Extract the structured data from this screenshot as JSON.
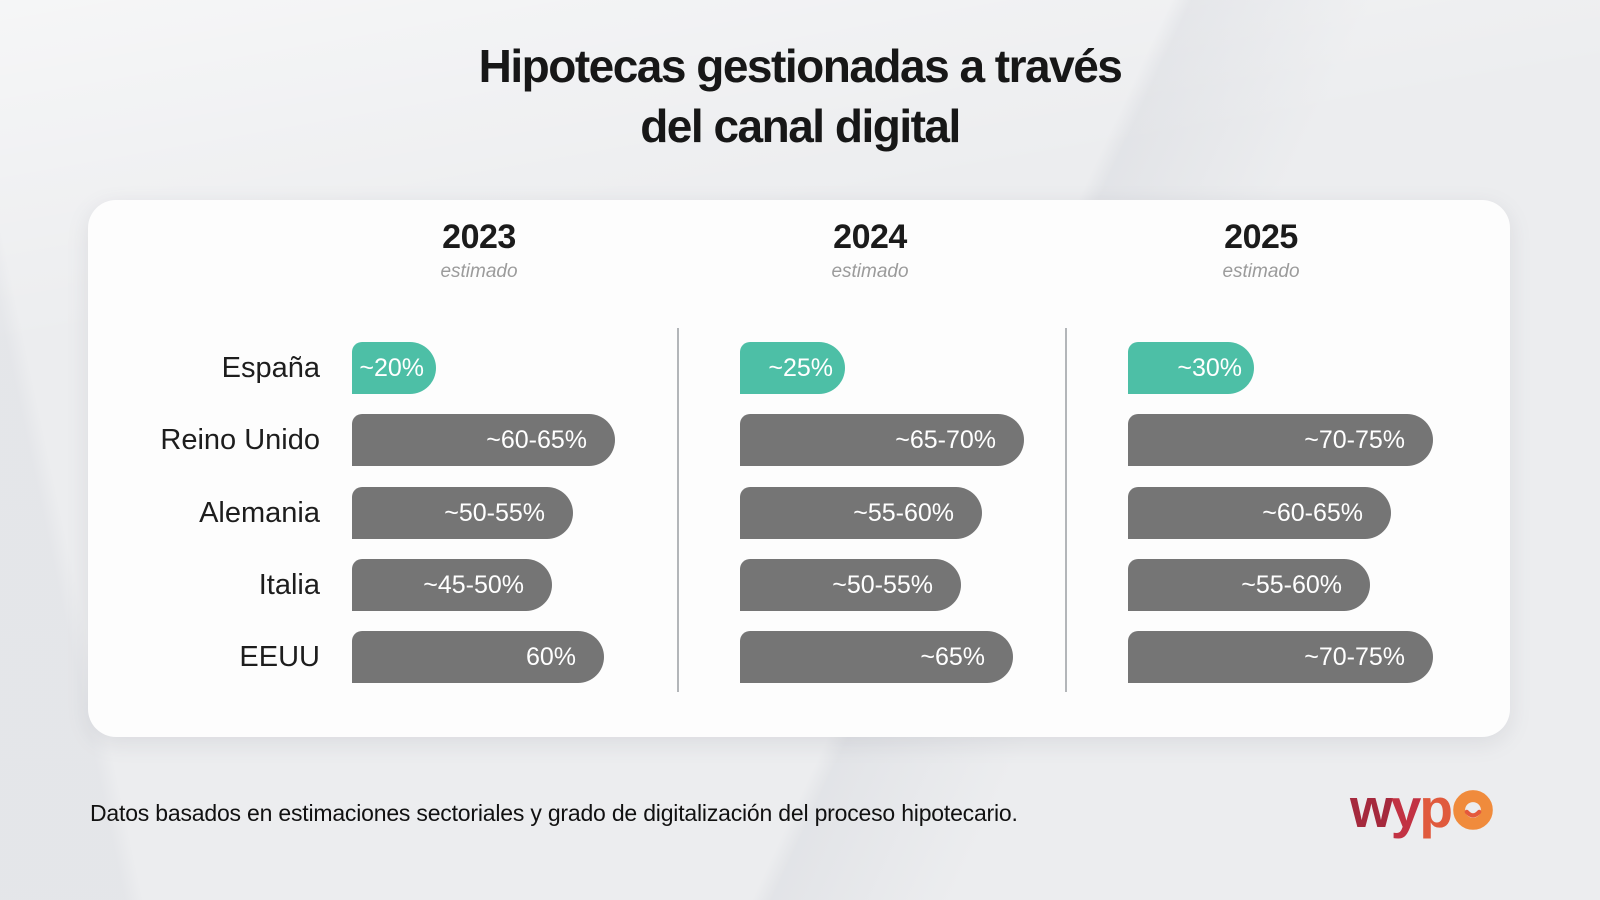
{
  "title": {
    "line1": "Hipotecas gestionadas a través",
    "line2": "del canal digital"
  },
  "footer": {
    "note": "Datos basados en estimaciones sectoriales y grado de digitalización del proceso hipotecario."
  },
  "logo": {
    "brand": "wypo",
    "letters": [
      {
        "char": "w",
        "color": "#a5293d"
      },
      {
        "char": "y",
        "color": "#c23243"
      },
      {
        "char": "p",
        "color": "#e05a3d"
      }
    ],
    "o_color": "#f08b3c",
    "smile_color": "#e4593c"
  },
  "colors": {
    "background": "#ecedef",
    "card": "#fdfdfd",
    "bar_gray": "#757575",
    "bar_teal": "#4dbfa6",
    "divider": "#a6a9ad",
    "estimado": "#9b9b9b",
    "title_text": "#171717",
    "label_text": "#1d1d1d",
    "value_text": "#ffffff",
    "footer_text": "#111111"
  },
  "chart_data": {
    "type": "bar",
    "orientation": "horizontal",
    "title": "Hipotecas gestionadas a través del canal digital",
    "categories": [
      "España",
      "Reino Unido",
      "Alemania",
      "Italia",
      "EEUU"
    ],
    "columns": [
      {
        "year": "2023",
        "subtitle": "estimado",
        "labels": [
          "~20%",
          "~60-65%",
          "~50-55%",
          "~45-50%",
          "60%"
        ],
        "values_mid": [
          20,
          62.5,
          52.5,
          47.5,
          60
        ]
      },
      {
        "year": "2024",
        "subtitle": "estimado",
        "labels": [
          "~25%",
          "~65-70%",
          "~55-60%",
          "~50-55%",
          "~65%"
        ],
        "values_mid": [
          25,
          67.5,
          57.5,
          52.5,
          65
        ]
      },
      {
        "year": "2025",
        "subtitle": "estimado",
        "labels": [
          "~30%",
          "~70-75%",
          "~60-65%",
          "~55-60%",
          "~70-75%"
        ],
        "values_mid": [
          30,
          72.5,
          62.5,
          57.5,
          72.5
        ]
      }
    ],
    "highlight_category": "España",
    "legend": false,
    "grid": false,
    "value_range": [
      0,
      75
    ]
  }
}
